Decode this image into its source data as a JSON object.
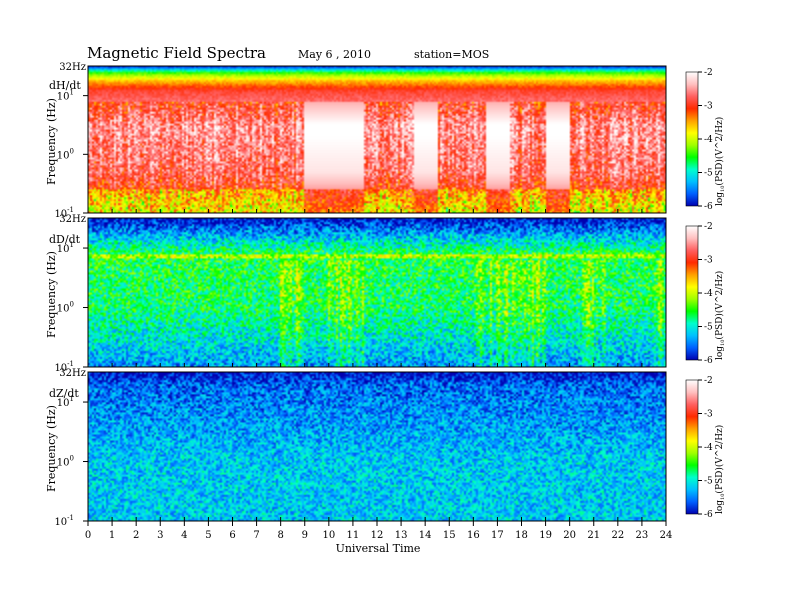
{
  "header": {
    "title": "Magnetic  Field  Spectra",
    "date": "May 6  , 2010",
    "station": "station=MOS"
  },
  "chart_data": {
    "type": "heatmap",
    "xlabel": "Universal Time",
    "x_ticks": [
      "0",
      "1",
      "2",
      "3",
      "4",
      "5",
      "6",
      "7",
      "8",
      "9",
      "10",
      "11",
      "12",
      "13",
      "14",
      "15",
      "16",
      "17",
      "18",
      "19",
      "20",
      "21",
      "22",
      "23",
      "24"
    ],
    "xlim": [
      0,
      24
    ],
    "ylabel": "Frequency  (Hz)",
    "y_scale": "log",
    "ylim": [
      0.1,
      32
    ],
    "y_tick_labels": {
      "top": "32Hz",
      "t1": {
        "base": "10",
        "exp": "1"
      },
      "t0": {
        "base": "10",
        "exp": "0"
      },
      "tm1": {
        "base": "10",
        "exp": "-1"
      }
    },
    "colorbar": {
      "label": "log₁₀(PSD)(V²/Hz)",
      "label_main": "(PSD)(V^2/Hz)",
      "label_prefix": "log",
      "label_sub": "10",
      "range": [
        -6,
        -2
      ],
      "ticks": [
        "-2",
        "-3",
        "-4",
        "-5",
        "-6"
      ],
      "colormap": [
        "#0000b0",
        "#0060ff",
        "#00c0ff",
        "#00ffcc",
        "#00ff00",
        "#a0ff00",
        "#ffff00",
        "#ffa000",
        "#ff2a00",
        "#ff6060",
        "#ffc0c0",
        "#ffffff"
      ]
    },
    "panels": [
      {
        "id": "dH",
        "label": "dH/dt",
        "description_level": "high",
        "band_levels_by_freq": [
          {
            "freq_hz": 32,
            "level": -6
          },
          {
            "freq_hz": 25,
            "level": -4.5
          },
          {
            "freq_hz": 18,
            "level": -3.6
          },
          {
            "freq_hz": 12,
            "level": -2.9
          },
          {
            "freq_hz": 3,
            "level": -2.2
          },
          {
            "freq_hz": 0.5,
            "level": -2.4
          },
          {
            "freq_hz": 0.1,
            "level": -3.2
          }
        ],
        "quiet_intervals_ut": [
          [
            9,
            11.5
          ],
          [
            13.5,
            14.5
          ],
          [
            16.5,
            17.5
          ],
          [
            19,
            20
          ]
        ]
      },
      {
        "id": "dD",
        "label": "dD/dt",
        "description_level": "medium",
        "band_levels_by_freq": [
          {
            "freq_hz": 32,
            "level": -6
          },
          {
            "freq_hz": 20,
            "level": -5.5
          },
          {
            "freq_hz": 8,
            "level": -4.6
          },
          {
            "freq_hz": 1,
            "level": -4.7
          },
          {
            "freq_hz": 0.1,
            "level": -5.4
          }
        ],
        "active_intervals_ut": [
          [
            8,
            9
          ],
          [
            10,
            11.5
          ],
          [
            16,
            19
          ],
          [
            20.5,
            21.5
          ],
          [
            23.5,
            24
          ]
        ]
      },
      {
        "id": "dZ",
        "label": "dZ/dt",
        "description_level": "low",
        "band_levels_by_freq": [
          {
            "freq_hz": 32,
            "level": -6
          },
          {
            "freq_hz": 20,
            "level": -5.6
          },
          {
            "freq_hz": 1,
            "level": -5.2
          },
          {
            "freq_hz": 0.1,
            "level": -5.2
          }
        ]
      }
    ]
  }
}
